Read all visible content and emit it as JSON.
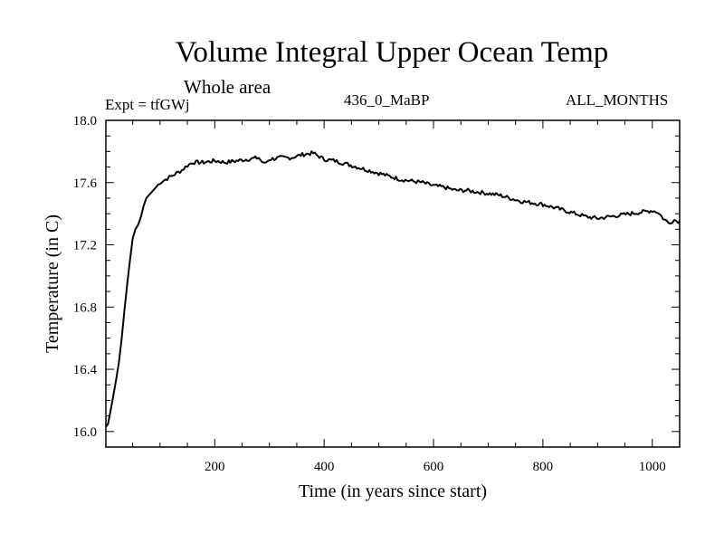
{
  "chart_data": {
    "type": "line",
    "title": "Volume Integral Upper Ocean Temp",
    "subtitle": "Whole area",
    "experiment": "Expt = tfGWj",
    "run": "436_0_MaBP",
    "months": "ALL_MONTHS",
    "xlabel": "Time (in years since start)",
    "ylabel": "Temperature (in C)",
    "xlim": [
      1,
      1050
    ],
    "ylim": [
      15.9,
      18.0
    ],
    "xticks": [
      200,
      400,
      600,
      800,
      1000
    ],
    "xtick_labels": [
      "200",
      "400",
      "600",
      "800",
      "1000"
    ],
    "yticks": [
      16.0,
      16.4,
      16.8,
      17.2,
      17.6,
      18.0
    ],
    "ytick_labels": [
      "16.0",
      "16.4",
      "16.8",
      "17.2",
      "17.6",
      "18.0"
    ],
    "series": [
      {
        "name": "Temperature",
        "x": [
          1,
          5,
          10,
          15,
          20,
          25,
          30,
          35,
          40,
          45,
          50,
          55,
          60,
          65,
          70,
          75,
          80,
          90,
          100,
          110,
          120,
          130,
          140,
          150,
          160,
          180,
          200,
          220,
          240,
          260,
          280,
          290,
          300,
          320,
          340,
          360,
          380,
          400,
          420,
          440,
          460,
          480,
          500,
          520,
          540,
          560,
          580,
          600,
          620,
          640,
          660,
          680,
          700,
          720,
          740,
          760,
          780,
          800,
          820,
          840,
          860,
          880,
          900,
          920,
          940,
          960,
          980,
          1000,
          1010,
          1020,
          1030,
          1040,
          1050
        ],
        "y": [
          16.03,
          16.05,
          16.14,
          16.24,
          16.34,
          16.45,
          16.6,
          16.78,
          16.95,
          17.1,
          17.24,
          17.3,
          17.33,
          17.38,
          17.45,
          17.5,
          17.52,
          17.56,
          17.6,
          17.62,
          17.64,
          17.66,
          17.68,
          17.71,
          17.73,
          17.73,
          17.74,
          17.73,
          17.74,
          17.75,
          17.76,
          17.72,
          17.75,
          17.76,
          17.76,
          17.78,
          17.79,
          17.75,
          17.74,
          17.72,
          17.7,
          17.68,
          17.66,
          17.64,
          17.62,
          17.61,
          17.6,
          17.58,
          17.57,
          17.55,
          17.55,
          17.54,
          17.53,
          17.52,
          17.5,
          17.48,
          17.47,
          17.46,
          17.44,
          17.42,
          17.4,
          17.38,
          17.37,
          17.38,
          17.39,
          17.4,
          17.41,
          17.42,
          17.41,
          17.37,
          17.34,
          17.36,
          17.35
        ]
      }
    ]
  }
}
